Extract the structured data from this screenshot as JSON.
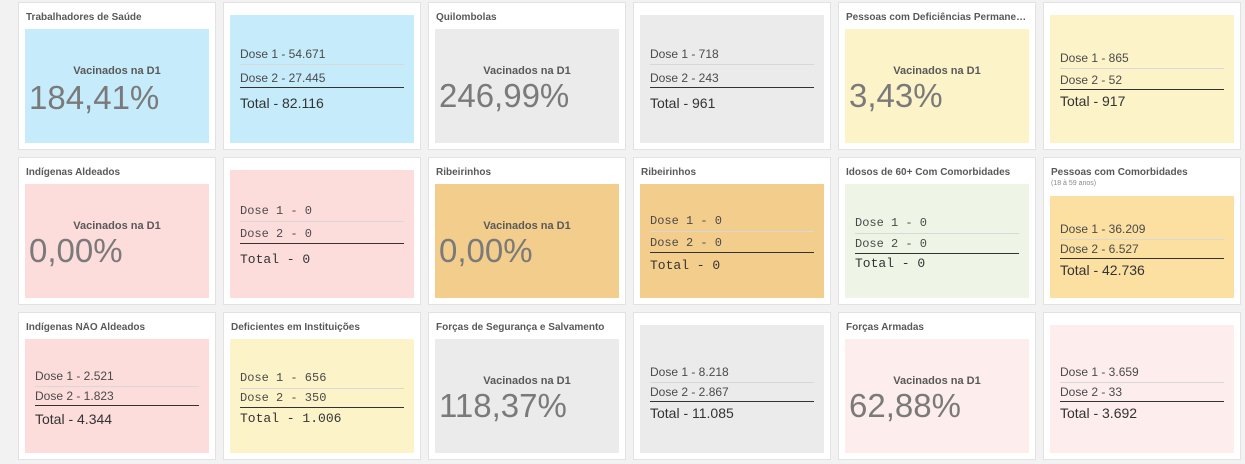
{
  "tiles": [
    {
      "title": "Trabalhadores de Saúde",
      "kpi_label": "Vacinados na D1",
      "kpi_value": "184,41%",
      "bg": "#c6ecfb"
    },
    {
      "dose1": "Dose 1 - 54.671",
      "dose2": "Dose 2 - 27.445",
      "total": "Total - 82.116",
      "bg": "#c6ecfb"
    },
    {
      "title": "Quilombolas",
      "kpi_label": "Vacinados na D1",
      "kpi_value": "246,99%",
      "bg": "#ebebeb"
    },
    {
      "dose1": "Dose 1 - 718",
      "dose2": "Dose 2 - 243",
      "total": "Total - 961",
      "bg": "#ebebeb"
    },
    {
      "title": "Pessoas com Deficiências Permanentes",
      "kpi_label": "Vacinados na D1",
      "kpi_value": "3,43%",
      "bg": "#fdf3c9"
    },
    {
      "dose1": "Dose 1 - 865",
      "dose2": "Dose 2 - 52",
      "total": "Total - 917",
      "bg": "#fdf3c9"
    },
    {
      "title": "Indígenas Aldeados",
      "kpi_label": "Vacinados na D1",
      "kpi_value": "0,00%",
      "bg": "#fddcdc"
    },
    {
      "dose1": "Dose 1 - 0",
      "dose2": "Dose 2 - 0",
      "total": "Total - 0",
      "bg": "#fddcdc"
    },
    {
      "title": "Ribeirinhos",
      "kpi_label": "Vacinados na D1",
      "kpi_value": "0,00%",
      "bg": "#f3cd8c"
    },
    {
      "title": "Ribeirinhos",
      "dose1": "Dose 1 - 0",
      "dose2": "Dose 2 - 0",
      "total": "Total - 0",
      "bg": "#f3cd8c"
    },
    {
      "title": "Idosos de 60+ Com Comorbidades",
      "dose1": "Dose 1 - 0",
      "dose2": "Dose 2 - 0",
      "total": "Total - 0",
      "bg": "#eef5e6"
    },
    {
      "title": "Pessoas com Comorbidades",
      "subtitle": "(18 à 59 anos)",
      "dose1": "Dose 1 - 36.209",
      "dose2": "Dose 2 - 6.527",
      "total": "Total - 42.736",
      "bg": "#fce0a2"
    },
    {
      "title": "Indígenas NÃO Aldeados",
      "dose1": "Dose 1 - 2.521",
      "dose2": "Dose 2 - 1.823",
      "total": "Total - 4.344",
      "bg": "#fddcdc"
    },
    {
      "title": "Deficientes em Instituições",
      "dose1": "Dose 1 - 656",
      "dose2": "Dose 2 - 350",
      "total": "Total - 1.006",
      "bg": "#fdf3c9"
    },
    {
      "title": "Forças de Segurança e Salvamento",
      "kpi_label": "Vacinados na D1",
      "kpi_value": "118,37%",
      "bg": "#ebebeb"
    },
    {
      "dose1": "Dose 1 - 8.218",
      "dose2": "Dose 2 - 2.867",
      "total": "Total - 11.085",
      "bg": "#ebebeb"
    },
    {
      "title": "Forças Armadas",
      "kpi_label": "Vacinados na D1",
      "kpi_value": "62,88%",
      "bg": "#fdeded"
    },
    {
      "dose1": "Dose 1 - 3.659",
      "dose2": "Dose 2 - 33",
      "total": "Total - 3.692",
      "bg": "#fdeded"
    }
  ]
}
